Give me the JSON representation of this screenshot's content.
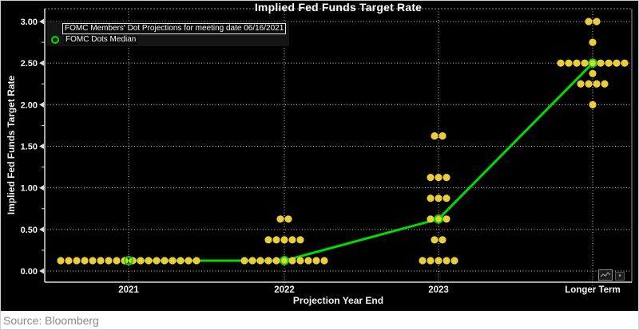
{
  "header": {
    "title": "Implied Fed Funds Target Rate"
  },
  "legend": {
    "items": [
      {
        "label": "FOMC Members' Dot Projections for meeting date 06/16/2021",
        "marker": "filled-dot",
        "color": "#E9CD3B",
        "selected": true
      },
      {
        "label": "FOMC Dots Median",
        "marker": "hollow-circle",
        "color": "#00DC00",
        "selected": false
      }
    ]
  },
  "axes": {
    "y": {
      "title": "Implied Fed Funds Target Rate"
    },
    "x": {
      "title": "Projection Year End"
    }
  },
  "controls": {
    "chart_type_icon": "line-chart-icon",
    "dropdown_icon": "caret-down"
  },
  "footer": {
    "source": "Source: Bloomberg"
  },
  "colors": {
    "background": "#000000",
    "dot_yellow": "#E9CD3B",
    "median_green": "#00DC00",
    "grid": "#c8c8c8",
    "axis": "#dcdcdc",
    "text": "#f2f2f2",
    "source_text": "#8a8a8a"
  },
  "chart_data": {
    "type": "scatter",
    "title": "Implied Fed Funds Target Rate",
    "xlabel": "Projection Year End",
    "ylabel": "Implied Fed Funds Target Rate",
    "categories": [
      "2021",
      "2022",
      "2023",
      "Longer Term"
    ],
    "ylim": [
      -0.13,
      3.15
    ],
    "y_ticks": [
      {
        "value": 0.0,
        "label": "0.00"
      },
      {
        "value": 0.5,
        "label": "0.50"
      },
      {
        "value": 1.0,
        "label": "1.00"
      },
      {
        "value": 1.5,
        "label": "1.50"
      },
      {
        "value": 2.0,
        "label": "2.00"
      },
      {
        "value": 2.5,
        "label": "2.50"
      },
      {
        "value": 3.0,
        "label": "3.00"
      }
    ],
    "y_minor_tick_step": 0.25,
    "grid": {
      "horizontal": "dotted",
      "vertical": "dotted"
    },
    "legend_position": "top-left",
    "series": [
      {
        "name": "FOMC Members' Dot Projections for meeting date 06/16/2021",
        "type": "dot-distribution",
        "color": "#E9CD3B",
        "distributions": [
          {
            "category": "2021",
            "dots": [
              {
                "rate": 0.125,
                "count": 18
              }
            ]
          },
          {
            "category": "2022",
            "dots": [
              {
                "rate": 0.125,
                "count": 11
              },
              {
                "rate": 0.375,
                "count": 5
              },
              {
                "rate": 0.625,
                "count": 2
              }
            ]
          },
          {
            "category": "2023",
            "dots": [
              {
                "rate": 0.125,
                "count": 5
              },
              {
                "rate": 0.375,
                "count": 2
              },
              {
                "rate": 0.625,
                "count": 3
              },
              {
                "rate": 0.875,
                "count": 3
              },
              {
                "rate": 1.125,
                "count": 3
              },
              {
                "rate": 1.625,
                "count": 2
              }
            ]
          },
          {
            "category": "Longer Term",
            "dots": [
              {
                "rate": 2.0,
                "count": 1
              },
              {
                "rate": 2.25,
                "count": 4
              },
              {
                "rate": 2.375,
                "count": 1
              },
              {
                "rate": 2.5,
                "count": 9
              },
              {
                "rate": 2.75,
                "count": 1
              },
              {
                "rate": 3.0,
                "count": 2
              }
            ]
          }
        ]
      },
      {
        "name": "FOMC Dots Median",
        "type": "line-with-hollow-markers",
        "color": "#00DC00",
        "values": [
          0.125,
          0.125,
          0.625,
          2.5
        ]
      }
    ]
  }
}
